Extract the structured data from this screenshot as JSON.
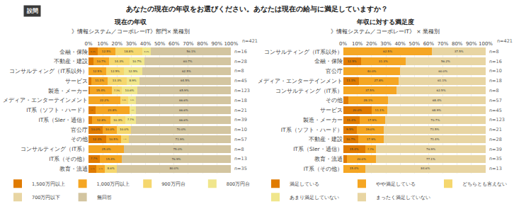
{
  "title": "あなたの現在の年収をお選びください。あなたは現在の給与に満足していますか？",
  "annotations": [
    "設問"
  ],
  "chart_data": [
    {
      "type": "bar",
      "orientation": "horizontal",
      "stacked": true,
      "data_labels": true,
      "grid": true,
      "legend": "bottom",
      "title": "現在の年収",
      "subtitle": "》情報システム／コーポレーIT》部門× 業種別",
      "categories": [
        "金融・保険",
        "不動産・建設",
        "コンサルティング（IT系以外）",
        "サービス",
        "製造・メーカー",
        "メディア・エンターテインメント",
        "IT系（ソフト・ハード）",
        "IT系（SIer・通信）",
        "官公庁",
        "その他",
        "コンサルティング（IT系）",
        "IT系（その他）",
        "教育・流通"
      ],
      "series": [
        {
          "name": "1,500万円以上",
          "color": "#E07B00",
          "values": [
            6.3,
            3.6,
            0,
            2.2,
            0.8,
            0,
            4.8,
            2.6,
            10.0,
            12.3,
            0,
            7.7,
            5.7
          ],
          "value_labels": [
            "6.3%",
            null,
            null,
            null,
            null,
            null,
            "4.8%",
            null,
            "10.0%",
            "12.3%",
            null,
            "7.7%",
            "5.7%"
          ]
        },
        {
          "name": "1,000万円以上",
          "color": "#F5A623",
          "values": [
            12.5,
            10.7,
            12.5,
            11.1,
            15.4,
            22.2,
            23.8,
            12.8,
            10.0,
            10.5,
            25.0,
            15.4,
            5.7
          ],
          "value_labels": [
            "12.5%",
            "10.7%",
            "12.5%",
            "11.1%",
            "15.4%",
            "22.2%",
            "23.8%",
            "12.8%",
            "10.0%",
            "10.5%",
            "25.0%",
            "15.4%",
            "5.7%"
          ]
        },
        {
          "name": "900万円台",
          "color": "#F5D76E",
          "values": [
            18.8,
            14.3,
            12.5,
            13.3,
            7.3,
            5.6,
            0,
            10.3,
            10.0,
            5.3,
            0,
            0,
            8.6
          ],
          "value_labels": [
            "18.8%",
            "14.3%",
            "12.5%",
            "13.3%",
            "7.3%",
            "5.6%",
            null,
            "10.3%",
            "10.0%",
            "5.3%",
            null,
            null,
            "8.6%"
          ]
        },
        {
          "name": "800万円台",
          "color": "#F0E68C",
          "values": [
            6.3,
            10.7,
            12.5,
            8.9,
            10.6,
            5.6,
            4.8,
            7.7,
            0,
            0,
            0,
            0,
            0
          ],
          "value_labels": [
            "6.3%",
            "10.7%",
            "12.5%",
            "8.9%",
            "10.6%",
            "5.6%",
            "4.8%",
            "7.7%",
            null,
            null,
            null,
            null,
            null
          ]
        },
        {
          "name": "700万円以下",
          "color": "#E8D5A3",
          "values": [
            0,
            0,
            0,
            0,
            0,
            0,
            0,
            0,
            0,
            0,
            0,
            0,
            0
          ],
          "value_labels": [
            null,
            null,
            null,
            null,
            null,
            null,
            null,
            null,
            null,
            null,
            null,
            null,
            null
          ]
        },
        {
          "name": "無回答",
          "color": "#D3C5A0",
          "values": [
            56.1,
            60.7,
            62.5,
            64.5,
            65.9,
            66.6,
            66.6,
            66.6,
            70.0,
            71.9,
            75.0,
            76.9,
            80.0
          ],
          "value_labels": [
            "56.1%",
            "60.7%",
            "62.5%",
            "64.5%",
            "65.9%",
            "66.6%",
            "66.6%",
            "66.6%",
            "70.0%",
            "71.9%",
            "75.0%",
            "76.9%",
            "80.0%"
          ]
        }
      ],
      "xlim": [
        0,
        100
      ],
      "xticks": [
        {
          "value": 0,
          "label": "0%"
        },
        {
          "value": 10,
          "label": "10%"
        },
        {
          "value": 20,
          "label": "20%"
        },
        {
          "value": 30,
          "label": "30%"
        },
        {
          "value": 40,
          "label": "40%"
        },
        {
          "value": 50,
          "label": "50%"
        },
        {
          "value": 60,
          "label": "60%"
        },
        {
          "value": 70,
          "label": "70%"
        },
        {
          "value": 80,
          "label": "80%"
        },
        {
          "value": 90,
          "label": "90%"
        },
        {
          "value": 100,
          "label": "100%"
        }
      ],
      "annotations": [
        {
          "category": "金融・保険",
          "text": "n=16"
        },
        {
          "category": "不動産・建設",
          "text": "n=28"
        },
        {
          "category": "コンサルティング（IT系以外）",
          "text": "n=8"
        },
        {
          "category": "サービス",
          "text": "n=45"
        },
        {
          "category": "製造・メーカー",
          "text": "n=123"
        },
        {
          "category": "メディア・エンターテインメント",
          "text": "n=18"
        },
        {
          "category": "IT系（ソフト・ハード）",
          "text": "n=21"
        },
        {
          "category": "IT系（SIer・通信）",
          "text": "n=39"
        },
        {
          "category": "官公庁",
          "text": "n=10"
        },
        {
          "category": "その他",
          "text": "n=57"
        },
        {
          "category": "コンサルティング（IT系）",
          "text": "n=8"
        },
        {
          "category": "IT系（その他）",
          "text": "n=13"
        },
        {
          "category": "教育・流通",
          "text": "n=35"
        },
        {
          "text": "n=421"
        }
      ]
    },
    {
      "type": "bar",
      "orientation": "horizontal",
      "stacked": true,
      "data_labels": true,
      "grid": true,
      "legend": "bottom",
      "title": "年収に対する満足度",
      "subtitle": "》情報システム／コーポレーIT》 × 業種別",
      "categories": [
        "コンサルティング（IT系以外）",
        "金融・保険",
        "官公庁",
        "メディア・エンターテインメント",
        "コンサルティング（IT系）",
        "その他",
        "サービス",
        "製造・メーカー",
        "IT系（ソフト・ハード）",
        "不動産・建設",
        "IT系（SIer・通信）",
        "教育・流通",
        "IT系（その他）"
      ],
      "series": [
        {
          "name": "満足している",
          "color": "#E07B00",
          "values": [
            0,
            12.5,
            0,
            11.1,
            0,
            3.5,
            20.0,
            11.4,
            9.5,
            10.7,
            15.4,
            2.9,
            0
          ],
          "value_labels": [
            null,
            "12.5%",
            null,
            "11.1%",
            null,
            null,
            "20.0%",
            "11.4%",
            "9.5%",
            "10.7%",
            "15.4%",
            null,
            null
          ]
        },
        {
          "name": "やや満足している",
          "color": "#F5A623",
          "values": [
            62.5,
            31.3,
            40.0,
            27.8,
            37.5,
            28.1,
            11.1,
            17.9,
            19.0,
            17.9,
            7.7,
            20.0,
            15.4
          ],
          "value_labels": [
            "62.5%",
            "31.3%",
            "40.0%",
            "27.8%",
            "37.5%",
            "28.1%",
            "11.1%",
            "17.9%",
            "19.0%",
            "17.9%",
            "7.7%",
            "20.0%",
            "15.4%"
          ]
        },
        {
          "name": "どちらとも言えない",
          "color": "#F5D76E",
          "values": [
            0,
            0,
            0,
            0,
            0,
            0,
            0,
            0,
            0,
            0,
            0,
            0,
            0
          ],
          "value_labels": [
            null,
            null,
            null,
            null,
            null,
            null,
            null,
            null,
            null,
            null,
            null,
            null,
            null
          ]
        },
        {
          "name": "あまり満足していない",
          "color": "#F0E68C",
          "values": [
            0,
            0,
            0,
            0,
            0,
            0,
            0,
            0,
            0,
            0,
            0,
            0,
            0
          ],
          "value_labels": [
            null,
            null,
            null,
            null,
            null,
            null,
            null,
            null,
            null,
            null,
            null,
            null,
            null
          ]
        },
        {
          "name": "まったく満足していない",
          "color": "#E8D5A3",
          "values": [
            37.5,
            56.2,
            60.0,
            61.1,
            62.5,
            68.4,
            68.9,
            70.7,
            71.5,
            71.4,
            76.9,
            77.1,
            84.6
          ],
          "value_labels": [
            "37.5%",
            "56.2%",
            "60.0%",
            "61.1%",
            "62.5%",
            "68.4%",
            "68.9%",
            "70.7%",
            "71.5%",
            "71.4%",
            "76.9%",
            "77.1%",
            "84.6%"
          ]
        }
      ],
      "xlim": [
        0,
        100
      ],
      "xticks": [
        {
          "value": 0,
          "label": "0%"
        },
        {
          "value": 10,
          "label": "10%"
        },
        {
          "value": 20,
          "label": "20%"
        },
        {
          "value": 30,
          "label": "30%"
        },
        {
          "value": 40,
          "label": "40%"
        },
        {
          "value": 50,
          "label": "50%"
        },
        {
          "value": 60,
          "label": "60%"
        },
        {
          "value": 70,
          "label": "70%"
        },
        {
          "value": 80,
          "label": "80%"
        },
        {
          "value": 90,
          "label": "90%"
        },
        {
          "value": 100,
          "label": "100%"
        }
      ],
      "annotations": [
        {
          "category": "コンサルティング（IT系以外）",
          "text": "n=8"
        },
        {
          "category": "金融・保険",
          "text": "n=16"
        },
        {
          "category": "官公庁",
          "text": "n=10"
        },
        {
          "category": "メディア・エンターテインメント",
          "text": "n=18"
        },
        {
          "category": "コンサルティング（IT系）",
          "text": "n=8"
        },
        {
          "category": "その他",
          "text": "n=57"
        },
        {
          "category": "サービス",
          "text": "n=45"
        },
        {
          "category": "製造・メーカー",
          "text": "n=123"
        },
        {
          "category": "IT系（ソフト・ハード）",
          "text": "n=21"
        },
        {
          "category": "不動産・建設",
          "text": "n=28"
        },
        {
          "category": "IT系（SIer・通信）",
          "text": "n=39"
        },
        {
          "category": "教育・流通",
          "text": "n=35"
        },
        {
          "category": "IT系（その他）",
          "text": "n=13"
        },
        {
          "text": "n=421"
        }
      ]
    }
  ]
}
